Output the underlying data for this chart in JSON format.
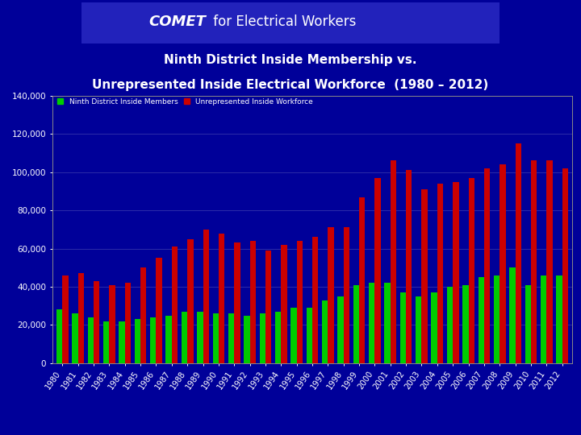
{
  "years": [
    1980,
    1981,
    1982,
    1983,
    1984,
    1985,
    1986,
    1987,
    1988,
    1989,
    1990,
    1991,
    1992,
    1993,
    1994,
    1995,
    1996,
    1997,
    1998,
    1999,
    2000,
    2001,
    2002,
    2003,
    2004,
    2005,
    2006,
    2007,
    2008,
    2009,
    2010,
    2011,
    2012
  ],
  "members": [
    28000,
    26000,
    24000,
    22000,
    22000,
    23000,
    24000,
    25000,
    27000,
    27000,
    26000,
    26000,
    25000,
    26000,
    27000,
    29000,
    29000,
    33000,
    35000,
    41000,
    42000,
    42000,
    37000,
    35000,
    37000,
    40000,
    41000,
    45000,
    46000,
    50000,
    41000,
    46000,
    46000
  ],
  "workforce": [
    46000,
    47000,
    43000,
    41000,
    42000,
    50000,
    55000,
    61000,
    65000,
    70000,
    68000,
    63000,
    64000,
    59000,
    62000,
    64000,
    66000,
    71000,
    71000,
    87000,
    97000,
    106000,
    101000,
    91000,
    94000,
    95000,
    97000,
    102000,
    104000,
    115000,
    106000,
    106000,
    102000
  ],
  "bg_color": "#000099",
  "bar_color_members": "#00cc00",
  "bar_color_workforce": "#cc0000",
  "title_line1": "Ninth District Inside Membership vs.",
  "title_line2": "Unrepresented Inside Electrical Workforce  (1980 – 2012)",
  "legend_label1": "Ninth District Inside Members",
  "legend_label2": "Unrepresented Inside Workforce",
  "ylim": [
    0,
    140000
  ],
  "yticks": [
    0,
    20000,
    40000,
    60000,
    80000,
    100000,
    120000,
    140000
  ],
  "grid_color": "#3333aa",
  "text_color": "#ffffff",
  "header_bg": "#cc0000",
  "banner_bg": "#2222bb",
  "comet_text": "COMET",
  "header_rest": " for Electrical Workers"
}
